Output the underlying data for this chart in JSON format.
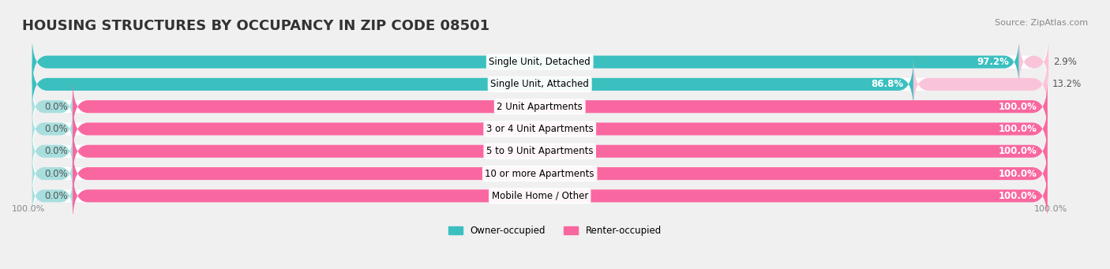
{
  "title": "HOUSING STRUCTURES BY OCCUPANCY IN ZIP CODE 08501",
  "source": "Source: ZipAtlas.com",
  "categories": [
    "Single Unit, Detached",
    "Single Unit, Attached",
    "2 Unit Apartments",
    "3 or 4 Unit Apartments",
    "5 to 9 Unit Apartments",
    "10 or more Apartments",
    "Mobile Home / Other"
  ],
  "owner_pct": [
    97.2,
    86.8,
    0.0,
    0.0,
    0.0,
    0.0,
    0.0
  ],
  "renter_pct": [
    2.9,
    13.2,
    100.0,
    100.0,
    100.0,
    100.0,
    100.0
  ],
  "owner_color": "#3bbfbf",
  "renter_color": "#f967a0",
  "owner_color_light": "#a8dede",
  "renter_color_light": "#f9c4d9",
  "bar_height": 0.55,
  "background_color": "#f0f0f0",
  "bar_bg_color": "#e8e8e8",
  "title_fontsize": 13,
  "label_fontsize": 8.5,
  "axis_fontsize": 8
}
